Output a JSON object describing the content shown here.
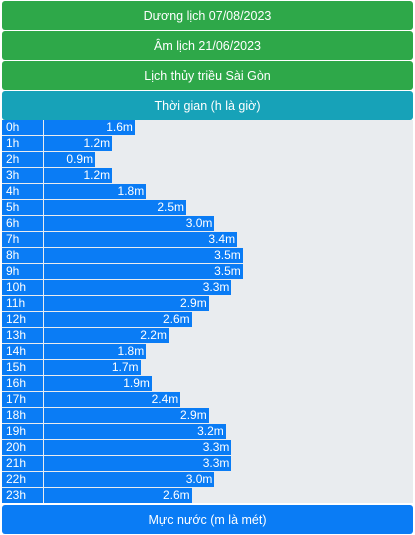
{
  "header": {
    "solar_date": "Dương lịch 07/08/2023",
    "lunar_date": "Âm lịch 21/06/2023",
    "tide_location": "Lịch thủy triều Sài Gòn",
    "time_label": "Thời gian (h là giờ)"
  },
  "footer": {
    "water_level_label": "Mực nước (m là mét)"
  },
  "colors": {
    "green": "#2ea849",
    "teal": "#17a2b8",
    "blue": "#0a7cf5",
    "track": "#e9ecef"
  },
  "chart_data": {
    "type": "bar",
    "orientation": "horizontal",
    "categories": [
      "0h",
      "1h",
      "2h",
      "3h",
      "4h",
      "5h",
      "6h",
      "7h",
      "8h",
      "9h",
      "10h",
      "11h",
      "12h",
      "13h",
      "14h",
      "15h",
      "16h",
      "17h",
      "18h",
      "19h",
      "20h",
      "21h",
      "22h",
      "23h"
    ],
    "values": [
      1.6,
      1.2,
      0.9,
      1.2,
      1.8,
      2.5,
      3.0,
      3.4,
      3.5,
      3.5,
      3.3,
      2.9,
      2.6,
      2.2,
      1.8,
      1.7,
      1.9,
      2.4,
      2.9,
      3.2,
      3.3,
      3.3,
      3.0,
      2.6
    ],
    "value_labels": [
      "1.6m",
      "1.2m",
      "0.9m",
      "1.2m",
      "1.8m",
      "2.5m",
      "3.0m",
      "3.4m",
      "3.5m",
      "3.5m",
      "3.3m",
      "2.9m",
      "2.6m",
      "2.2m",
      "1.8m",
      "1.7m",
      "1.9m",
      "2.4m",
      "2.9m",
      "3.2m",
      "3.3m",
      "3.3m",
      "3.0m",
      "2.6m"
    ],
    "unit": "m",
    "xlim": [
      0,
      6
    ]
  }
}
